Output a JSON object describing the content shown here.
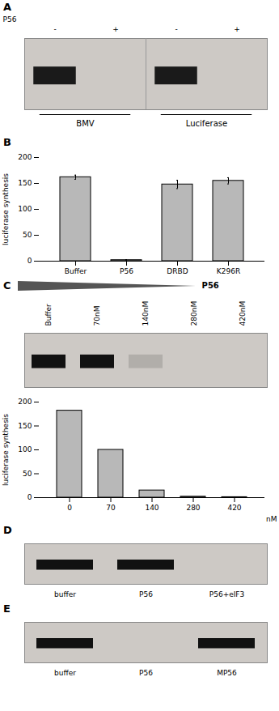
{
  "chart_data": [
    {
      "type": "gel",
      "title": "A",
      "header": "P56",
      "categories": [
        "-",
        "+",
        "-",
        "+"
      ],
      "group_labels": [
        "BMV",
        "Luciferase"
      ],
      "band_present": [
        true,
        false,
        true,
        false
      ],
      "color": "#1a1a1a"
    },
    {
      "type": "bar",
      "title": "B",
      "categories": [
        "Buffer",
        "P56",
        "DRBD",
        "K296R"
      ],
      "values": [
        162,
        2,
        148,
        155
      ],
      "errors": [
        4,
        1,
        8,
        6
      ],
      "ylabel": "luciferase synthesis",
      "ylim": [
        0,
        200
      ],
      "yticks": [
        0,
        50,
        100,
        150,
        200
      ],
      "color": "#b8b8b8"
    },
    {
      "type": "gel",
      "title": "C",
      "header": "P56",
      "categories": [
        "Buffer",
        "70nM",
        "140nM",
        "280nM",
        "420nM"
      ],
      "band_intensity": [
        1.0,
        1.0,
        0.15,
        0.0,
        0.0
      ],
      "color": "#111111"
    },
    {
      "type": "bar",
      "categories": [
        "0",
        "70",
        "140",
        "280",
        "420"
      ],
      "xlabel": "nM",
      "values": [
        182,
        100,
        15,
        2,
        1
      ],
      "ylabel": "luciferase synthesis",
      "ylim": [
        0,
        200
      ],
      "yticks": [
        0,
        50,
        100,
        150,
        200
      ],
      "color": "#b8b8b8"
    },
    {
      "type": "gel",
      "title": "D",
      "categories": [
        "buffer",
        "P56",
        "P56+eIF3"
      ],
      "band_present": [
        true,
        true,
        false
      ],
      "color": "#111111"
    },
    {
      "type": "gel",
      "title": "E",
      "categories": [
        "buffer",
        "P56",
        "MP56"
      ],
      "band_present": [
        true,
        false,
        true
      ],
      "color": "#111111"
    }
  ]
}
